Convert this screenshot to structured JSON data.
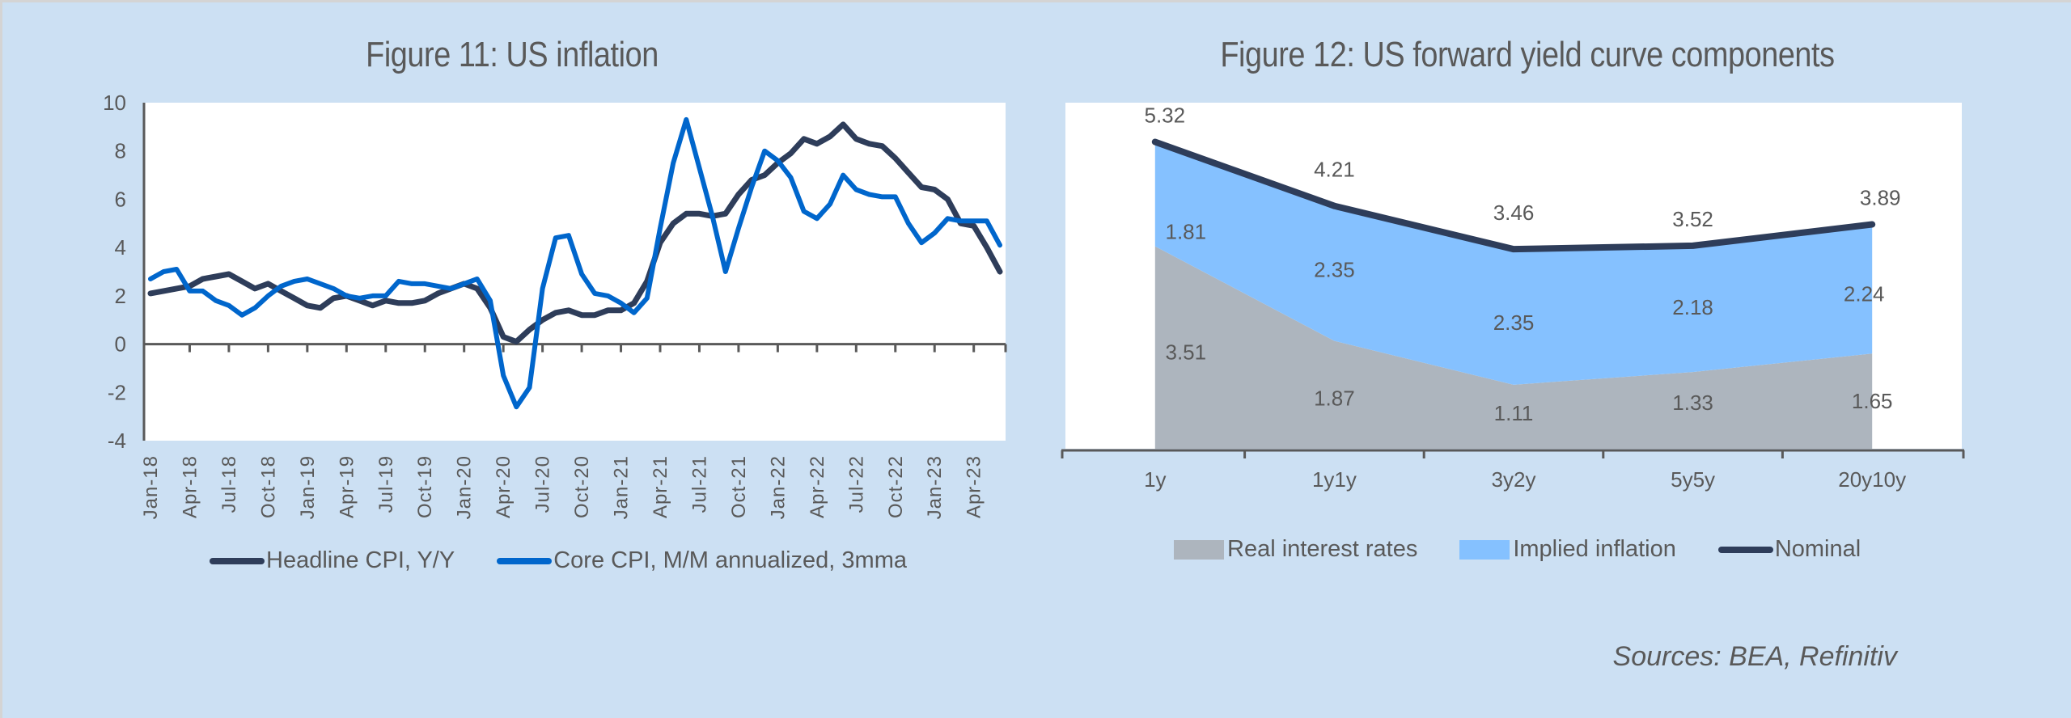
{
  "colors": {
    "background": "#cce0f3",
    "plot_background": "#ffffff",
    "axis": "#595959",
    "headline": "#2e3d5a",
    "core": "#0066cc",
    "real": "#adb5be",
    "implied": "#85c1ff",
    "nominal": "#2e3d5a"
  },
  "footer": {
    "sources": "Sources: BEA, Refinitiv"
  },
  "chart_data": [
    {
      "type": "line",
      "title": "Figure 11: US inflation",
      "xlabel": "",
      "ylabel": "",
      "ylim": [
        -4,
        10
      ],
      "yticks": [
        10,
        8,
        6,
        4,
        2,
        0,
        -2,
        -4
      ],
      "grid": false,
      "legend_position": "bottom",
      "x_tick_labels": [
        "Jan-18",
        "Apr-18",
        "Jul-18",
        "Oct-18",
        "Jan-19",
        "Apr-19",
        "Jul-19",
        "Oct-19",
        "Jan-20",
        "Apr-20",
        "Jul-20",
        "Oct-20",
        "Jan-21",
        "Apr-21",
        "Jul-21",
        "Oct-21",
        "Jan-22",
        "Apr-22",
        "Jul-22",
        "Oct-22",
        "Jan-23",
        "Apr-23"
      ],
      "x_start": "Jan-18",
      "x_frequency": "monthly",
      "n_points": 66,
      "series": [
        {
          "name": "Headline CPI, Y/Y",
          "color_key": "headline",
          "values": [
            2.1,
            2.2,
            2.3,
            2.4,
            2.7,
            2.8,
            2.9,
            2.6,
            2.3,
            2.5,
            2.2,
            1.9,
            1.6,
            1.5,
            1.9,
            2.0,
            1.8,
            1.6,
            1.8,
            1.7,
            1.7,
            1.8,
            2.1,
            2.3,
            2.5,
            2.3,
            1.5,
            0.3,
            0.1,
            0.6,
            1.0,
            1.3,
            1.4,
            1.2,
            1.2,
            1.4,
            1.4,
            1.7,
            2.6,
            4.2,
            5.0,
            5.4,
            5.4,
            5.3,
            5.4,
            6.2,
            6.8,
            7.0,
            7.5,
            7.9,
            8.5,
            8.3,
            8.6,
            9.1,
            8.5,
            8.3,
            8.2,
            7.7,
            7.1,
            6.5,
            6.4,
            6.0,
            5.0,
            4.9,
            4.0,
            3.0
          ]
        },
        {
          "name": "Core CPI, M/M annualized, 3mma",
          "color_key": "core",
          "values": [
            2.7,
            3.0,
            3.1,
            2.2,
            2.2,
            1.8,
            1.6,
            1.2,
            1.5,
            2.0,
            2.4,
            2.6,
            2.7,
            2.5,
            2.3,
            2.0,
            1.9,
            2.0,
            2.0,
            2.6,
            2.5,
            2.5,
            2.4,
            2.3,
            2.5,
            2.7,
            1.8,
            -1.3,
            -2.6,
            -1.8,
            2.3,
            4.4,
            4.5,
            2.9,
            2.1,
            2.0,
            1.7,
            1.3,
            1.9,
            4.8,
            7.5,
            9.3,
            7.3,
            5.3,
            3.0,
            4.8,
            6.5,
            8.0,
            7.6,
            6.9,
            5.5,
            5.2,
            5.8,
            7.0,
            6.4,
            6.2,
            6.1,
            6.1,
            5.0,
            4.2,
            4.6,
            5.2,
            5.1,
            5.1,
            5.1,
            4.1
          ]
        }
      ]
    },
    {
      "type": "area",
      "stacked": true,
      "title": "Figure 12: US forward yield curve components",
      "xlabel": "",
      "ylabel": "",
      "ylim": [
        0,
        6
      ],
      "grid": false,
      "legend_position": "bottom",
      "categories": [
        "1y",
        "1y1y",
        "3y2y",
        "5y5y",
        "20y10y"
      ],
      "series": [
        {
          "name": "Real interest rates",
          "kind": "area",
          "color_key": "real",
          "values": [
            3.51,
            1.87,
            1.11,
            1.33,
            1.65
          ],
          "labels": [
            "3.51",
            "1.87",
            "1.11",
            "1.33",
            "1.65"
          ]
        },
        {
          "name": "Implied inflation",
          "kind": "area",
          "color_key": "implied",
          "values": [
            1.81,
            2.35,
            2.35,
            2.18,
            2.24
          ],
          "labels": [
            "1.81",
            "2.35",
            "2.35",
            "2.18",
            "2.24"
          ]
        },
        {
          "name": "Nominal",
          "kind": "line",
          "color_key": "nominal",
          "values": [
            5.32,
            4.21,
            3.46,
            3.52,
            3.89
          ],
          "labels": [
            "5.32",
            "4.21",
            "3.46",
            "3.52",
            "3.89"
          ]
        }
      ]
    }
  ]
}
